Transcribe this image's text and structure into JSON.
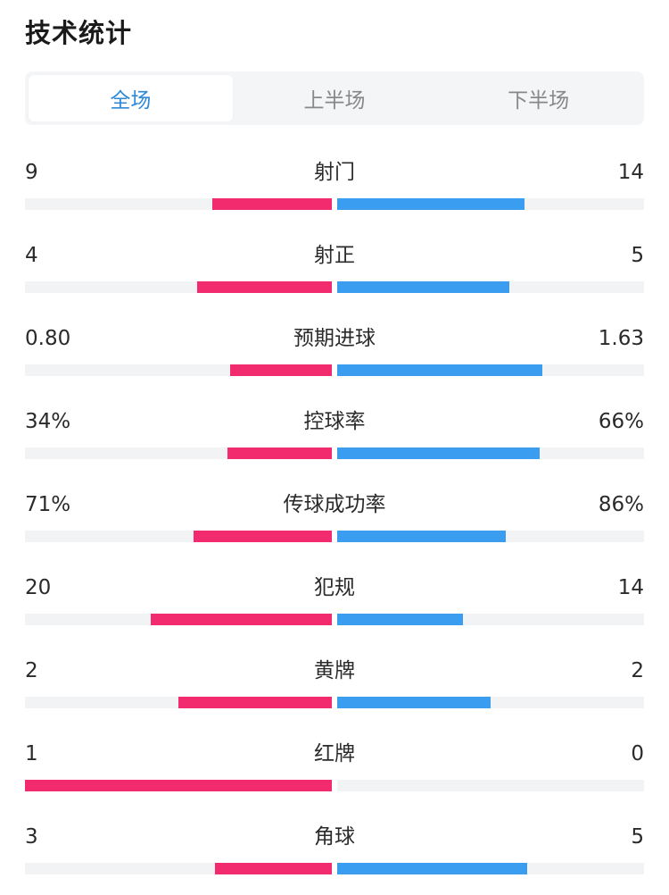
{
  "header": {
    "title": "技术统计"
  },
  "tabs": [
    {
      "label": "全场",
      "active": true
    },
    {
      "label": "上半场",
      "active": false
    },
    {
      "label": "下半场",
      "active": false
    }
  ],
  "colors": {
    "home": "#f22a6e",
    "away": "#3a9df0",
    "track": "#f2f3f5",
    "active_tab": "#2c8ad8"
  },
  "stats": [
    {
      "label": "射门",
      "home": "9",
      "away": "14",
      "home_ratio": 0.39,
      "away_ratio": 0.61
    },
    {
      "label": "射正",
      "home": "4",
      "away": "5",
      "home_ratio": 0.44,
      "away_ratio": 0.56
    },
    {
      "label": "预期进球",
      "home": "0.80",
      "away": "1.63",
      "home_ratio": 0.33,
      "away_ratio": 0.67
    },
    {
      "label": "控球率",
      "home": "34%",
      "away": "66%",
      "home_ratio": 0.34,
      "away_ratio": 0.66
    },
    {
      "label": "传球成功率",
      "home": "71%",
      "away": "86%",
      "home_ratio": 0.45,
      "away_ratio": 0.55
    },
    {
      "label": "犯规",
      "home": "20",
      "away": "14",
      "home_ratio": 0.59,
      "away_ratio": 0.41
    },
    {
      "label": "黄牌",
      "home": "2",
      "away": "2",
      "home_ratio": 0.5,
      "away_ratio": 0.5
    },
    {
      "label": "红牌",
      "home": "1",
      "away": "0",
      "home_ratio": 1.0,
      "away_ratio": 0.0
    },
    {
      "label": "角球",
      "home": "3",
      "away": "5",
      "home_ratio": 0.38,
      "away_ratio": 0.62
    }
  ]
}
